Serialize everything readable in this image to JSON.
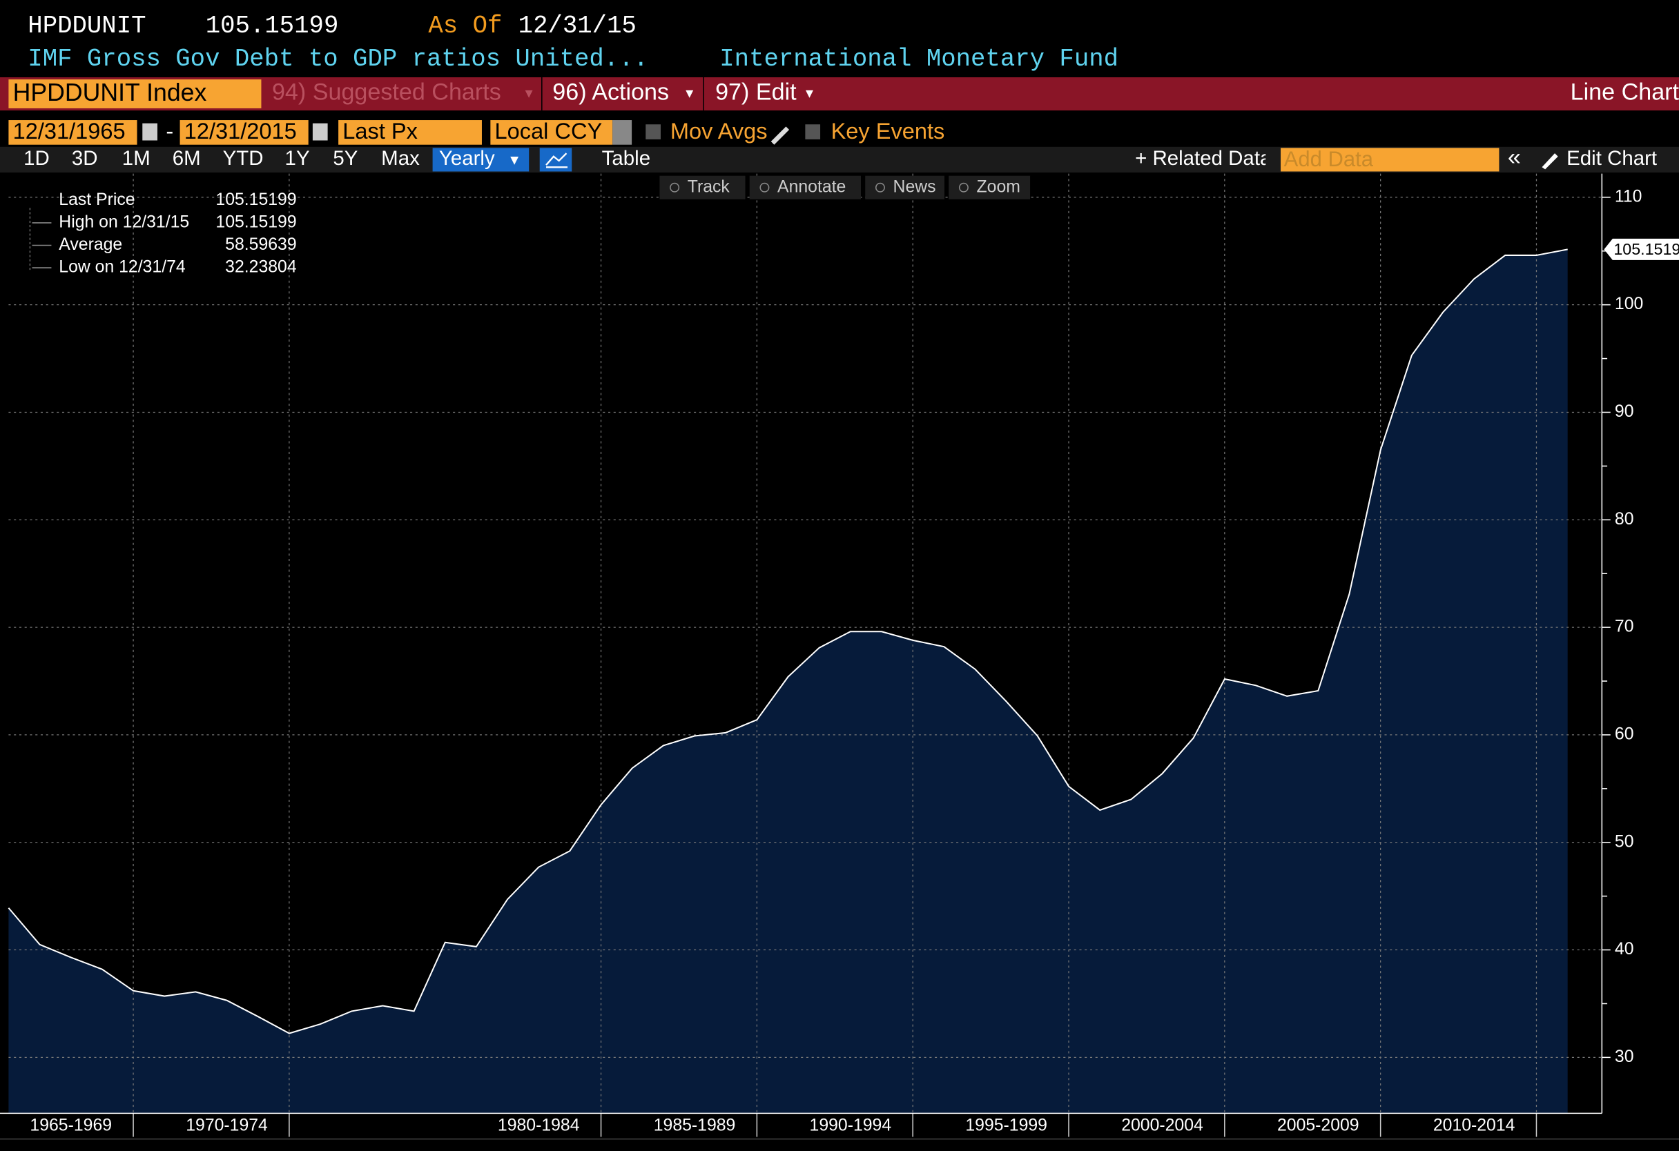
{
  "header": {
    "ticker": "HPDDUNIT",
    "price": 105.15199,
    "as_of_label": "As Of",
    "as_of_date": "12/31/15",
    "description": "IMF Gross Gov Debt to GDP ratios United...",
    "source": "International Monetary Fund"
  },
  "toolbar": {
    "security": "HPDDUNIT Index",
    "menus": [
      "94) Suggested Charts",
      "96) Actions",
      "97) Edit"
    ],
    "chart_type": "Line Chart"
  },
  "controls": {
    "start_date": "12/31/1965",
    "separator": "-",
    "end_date": "12/31/2015",
    "field": "Last Px",
    "currency": "Local CCY",
    "mov_avgs": "Mov Avgs",
    "key_events": "Key Events"
  },
  "periods": [
    "1D",
    "3D",
    "1M",
    "6M",
    "YTD",
    "1Y",
    "5Y",
    "Max"
  ],
  "frequency": "Yearly",
  "table": "Table",
  "related": "+ Related Data",
  "add_data": "Add Data",
  "edit_chart": "Edit Chart",
  "chart_tools": [
    "Track",
    "Annotate",
    "News",
    "Zoom"
  ],
  "chart_data": {
    "type": "area",
    "color": "#ffffff",
    "fill": "#061b3a",
    "x": [
      1965,
      1966,
      1967,
      1968,
      1969,
      1970,
      1971,
      1972,
      1973,
      1974,
      1975,
      1976,
      1977,
      1978,
      1979,
      1980,
      1981,
      1982,
      1983,
      1984,
      1985,
      1986,
      1987,
      1988,
      1989,
      1990,
      1991,
      1992,
      1993,
      1994,
      1995,
      1996,
      1997,
      1998,
      1999,
      2000,
      2001,
      2002,
      2003,
      2004,
      2005,
      2006,
      2007,
      2008,
      2009,
      2010,
      2011,
      2012,
      2013,
      2014,
      2015
    ],
    "values": [
      43.9,
      40.5,
      39.3,
      38.2,
      36.2,
      35.7,
      36.1,
      35.3,
      33.8,
      32.23804,
      33.1,
      34.3,
      34.8,
      34.3,
      40.7,
      40.3,
      44.7,
      47.7,
      49.2,
      53.5,
      56.9,
      59.0,
      59.9,
      60.2,
      61.4,
      65.4,
      68.1,
      69.6,
      69.6,
      68.8,
      68.2,
      66.1,
      63.1,
      59.9,
      55.2,
      53.0,
      54.0,
      56.4,
      59.7,
      65.2,
      64.6,
      63.6,
      64.1,
      73.1,
      86.5,
      95.3,
      99.3,
      102.4,
      104.6,
      104.6,
      105.15199
    ],
    "xlim": [
      1965,
      2016.1
    ],
    "ylim": [
      24.8,
      112.2
    ],
    "xticks": [
      {
        "value": 1967,
        "label": "1965-1969"
      },
      {
        "value": 1972,
        "label": "1970-1974"
      },
      {
        "value": 1982,
        "label": "1980-1984"
      },
      {
        "value": 1987,
        "label": "1985-1989"
      },
      {
        "value": 1992,
        "label": "1990-1994"
      },
      {
        "value": 1997,
        "label": "1995-1999"
      },
      {
        "value": 2002,
        "label": "2000-2004"
      },
      {
        "value": 2007,
        "label": "2005-2009"
      },
      {
        "value": 2012,
        "label": "2010-2014"
      }
    ],
    "yticks": [
      30,
      40,
      50,
      60,
      70,
      80,
      90,
      100,
      110
    ],
    "yminorticks": [
      35,
      45,
      55,
      65,
      75,
      85,
      95,
      105
    ],
    "grid": true,
    "legend": [
      {
        "label": "Last Price",
        "value": 105.15199
      },
      {
        "label": "High on 12/31/15",
        "value": 105.15199
      },
      {
        "label": "Average",
        "value": 58.59639
      },
      {
        "label": "Low on 12/31/74",
        "value": 32.23804
      }
    ]
  }
}
